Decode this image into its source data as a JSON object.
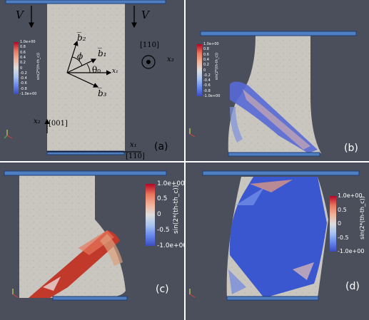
{
  "colors": {
    "background": "#4b4f5b",
    "specimen": "#c9c6c0",
    "plate": "#4f7fc0",
    "positive": "#b40426",
    "negative": "#3b4cc0"
  },
  "colorbar": {
    "title": "sin(2*(th-th_c))",
    "small_ticks": [
      "1.0e+00",
      "0.8",
      "0.6",
      "0.4",
      "0.2",
      "0",
      "-0.2",
      "-0.4",
      "-0.6",
      "-0.8",
      "-1.0e+00"
    ],
    "large_ticks": [
      "1.0e+00",
      "0.5",
      "0",
      "-0.5",
      "-1.0e+00"
    ]
  },
  "panel_a": {
    "label": "(a)",
    "velocity_left": "V",
    "velocity_right": "V",
    "b2": "b̅₂",
    "b1": "b̅₁",
    "b3": "b̅₃",
    "phi": "ϕ",
    "theta": "θ₀",
    "x1_arrow": "x₁",
    "dir_110_top": "[110]",
    "x3": "x₃",
    "x2": "x₂",
    "dir_001": "[001]",
    "x1_bottom": "x₁",
    "dir_110_bottom": "[110]"
  },
  "panel_b": {
    "label": "(b)"
  },
  "panel_c": {
    "label": "(c)"
  },
  "panel_d": {
    "label": "(d)"
  }
}
